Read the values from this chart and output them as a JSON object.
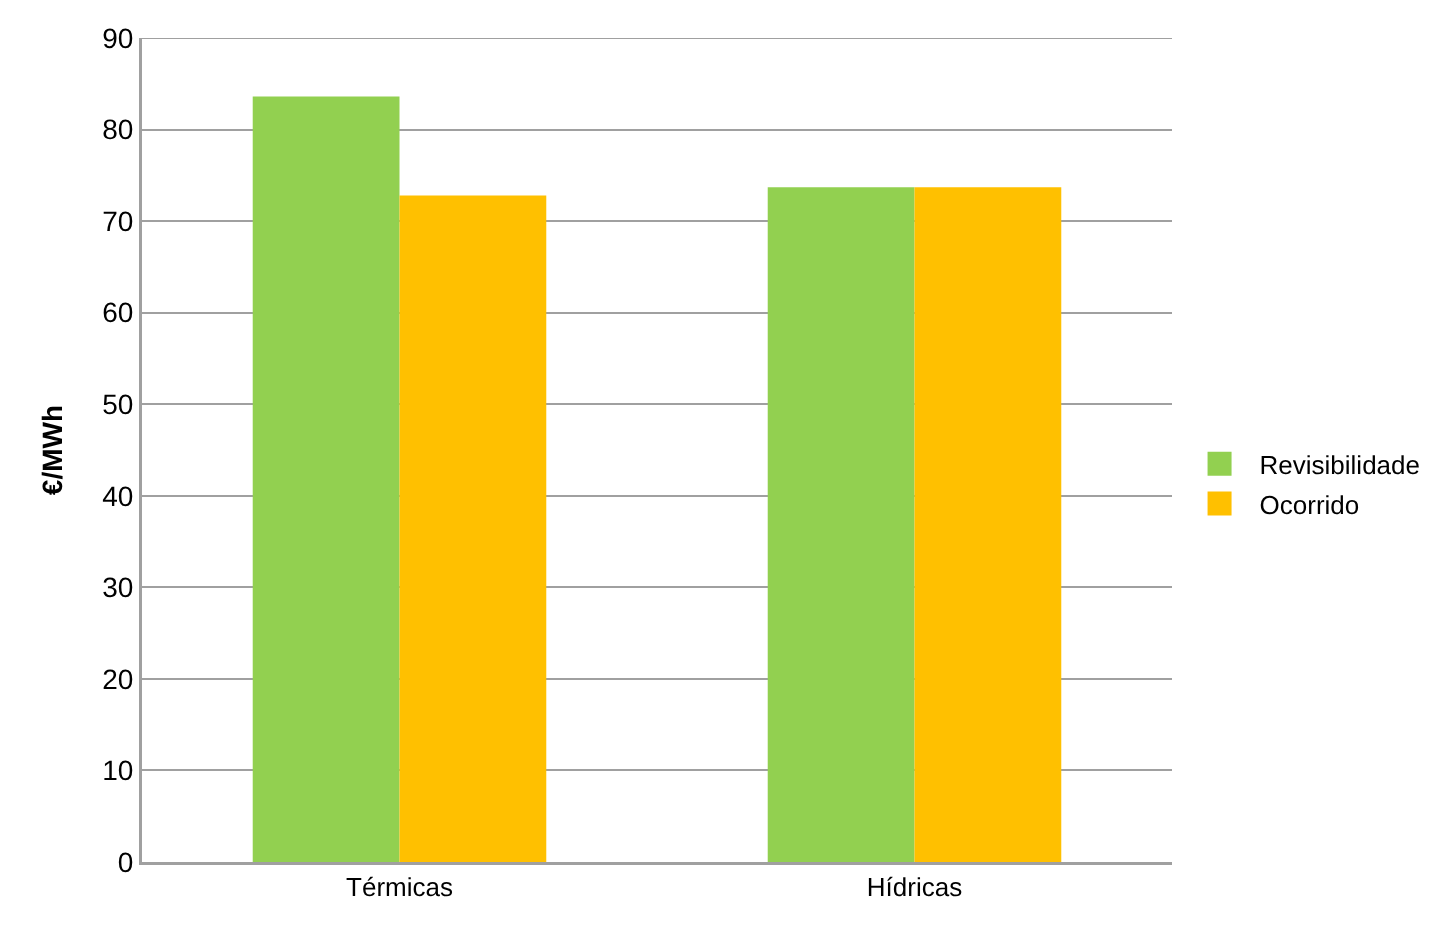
{
  "chart_data": {
    "type": "bar",
    "ylabel": "€/MWh",
    "categories": [
      "Térmicas",
      "Hídricas"
    ],
    "series": [
      {
        "name": "Revisibilidade",
        "color": "#92d050",
        "values": [
          83.6,
          73.7
        ]
      },
      {
        "name": "Ocorrido",
        "color": "#ffc000",
        "values": [
          72.8,
          73.7
        ]
      }
    ],
    "ylim": [
      0,
      90
    ],
    "yticks": [
      0,
      10,
      20,
      30,
      40,
      50,
      60,
      70,
      80,
      90
    ],
    "grid": "y",
    "legend": "right"
  }
}
